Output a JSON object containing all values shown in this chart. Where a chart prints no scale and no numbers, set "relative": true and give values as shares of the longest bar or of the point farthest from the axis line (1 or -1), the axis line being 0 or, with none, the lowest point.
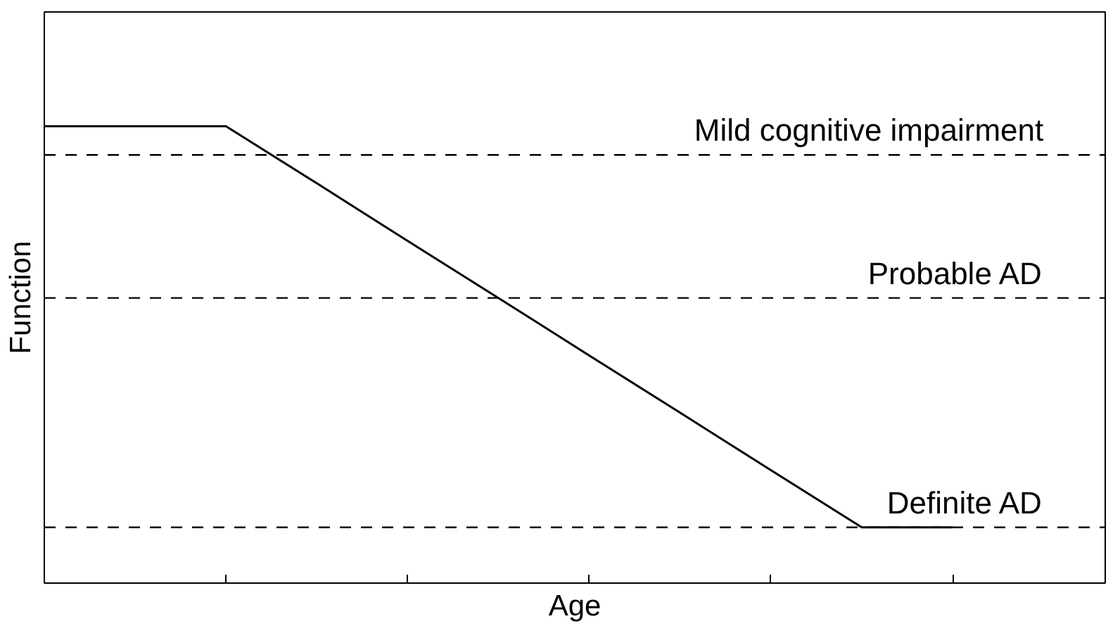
{
  "chart_data": {
    "type": "line",
    "relative": true,
    "xlabel": "Age",
    "ylabel": "Function",
    "categories": [
      null,
      null,
      null,
      null,
      null,
      null,
      null,
      null,
      null,
      null,
      null
    ],
    "series": [
      {
        "color": "#000000",
        "values": [
          1,
          1,
          1,
          0.875,
          0.749,
          0.624,
          0.498,
          0.373,
          0.247,
          0.122,
          0.122
        ]
      }
    ],
    "ref_lines": [
      {
        "axis": "y",
        "value": 0.937,
        "label": "Mild cognitive impairment",
        "line_style": "dashed"
      },
      {
        "axis": "y",
        "value": 0.624,
        "label": "Probable AD",
        "line_style": "dashed"
      },
      {
        "axis": "y",
        "value": 0.122,
        "label": "Definite AD",
        "line_style": "dashed"
      }
    ],
    "grid": false,
    "marker": "none",
    "line_style": "solid"
  }
}
